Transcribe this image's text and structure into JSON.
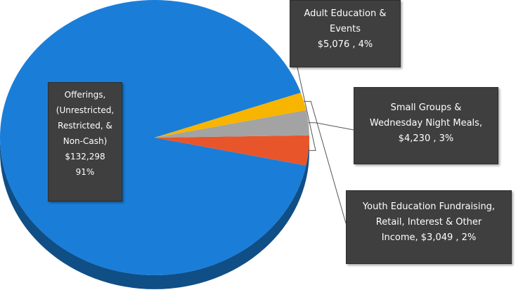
{
  "chart_data": {
    "type": "pie",
    "title": "",
    "slices": [
      {
        "name": "Offerings, (Unrestricted, Restricted, & Non-Cash)",
        "value": 132298,
        "percent": 91,
        "color": "#1a7ed8"
      },
      {
        "name": "Adult Education & Events",
        "value": 5076,
        "percent": 4,
        "color": "#e8552a"
      },
      {
        "name": "Small Groups & Wednesday Night Meals",
        "value": 4230,
        "percent": 3,
        "color": "#a3a3a3"
      },
      {
        "name": "Youth Education Fundraising, Retail, Interest & Other Income",
        "value": 3049,
        "percent": 2,
        "color": "#f7b500"
      }
    ],
    "legend": "callouts"
  },
  "labels": {
    "offerings": {
      "line1": "Offerings,",
      "line2": "(Unrestricted,",
      "line3": "Restricted, &",
      "line4": "Non-Cash)",
      "value": "$132,298",
      "percent": "91%"
    },
    "adult": {
      "line1": "Adult Education &",
      "line2": "Events",
      "value": "$5,076 , 4%"
    },
    "small": {
      "line1": "Small Groups &",
      "line2": "Wednesday Night Meals,",
      "value": "$4,230 , 3%"
    },
    "youth": {
      "line1": "Youth Education Fundraising,",
      "line2": "Retail, Interest & Other",
      "value": "Income,  $3,049 , 2%"
    }
  }
}
